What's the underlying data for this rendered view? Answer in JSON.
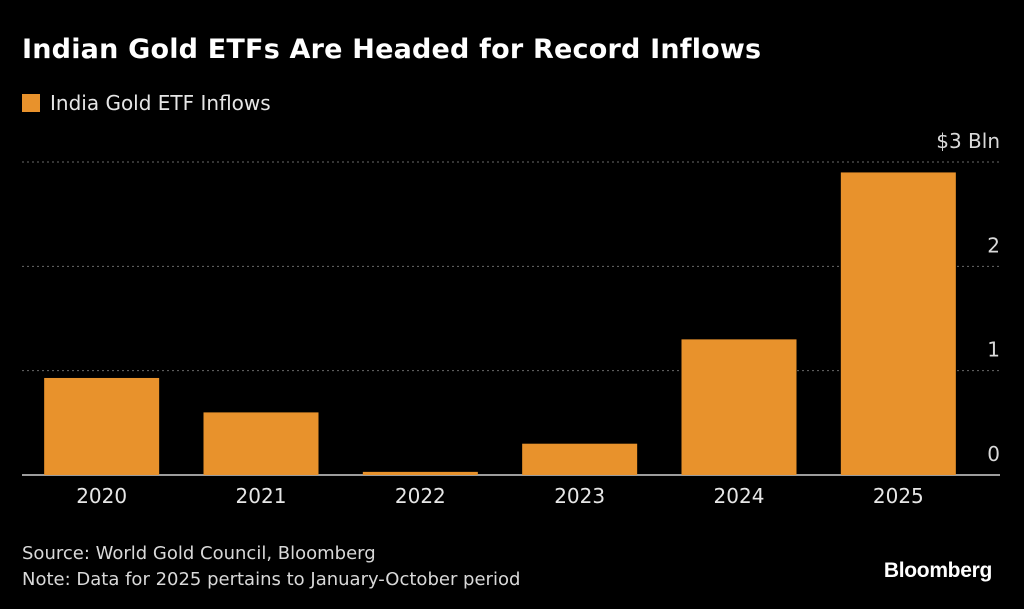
{
  "header": {
    "title": "Indian Gold ETFs Are Headed for Record Inflows"
  },
  "legend": {
    "label": "India Gold ETF Inflows",
    "color": "#e8922c"
  },
  "footer": {
    "source": "Source: World Gold Council, Bloomberg",
    "note": "Note: Data for 2025 pertains to January-October period",
    "brand": "Bloomberg"
  },
  "chart_data": {
    "type": "bar",
    "categories": [
      "2020",
      "2021",
      "2022",
      "2023",
      "2024",
      "2025"
    ],
    "series": [
      {
        "name": "India Gold ETF Inflows",
        "values": [
          0.93,
          0.6,
          0.03,
          0.3,
          1.3,
          2.9
        ]
      }
    ],
    "ylim": [
      0,
      3
    ],
    "yticks": [
      0,
      1,
      2,
      3
    ],
    "ytick_labels": [
      "0",
      "1",
      "2",
      "$3 Bln"
    ],
    "y_axis_position": "right",
    "grid": "horizontal dotted",
    "legend_position": "top-left",
    "bar_color": "#e8922c"
  }
}
